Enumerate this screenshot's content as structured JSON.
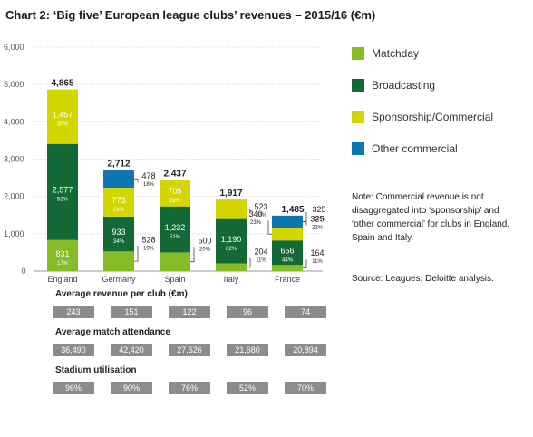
{
  "chart_data": {
    "type": "bar",
    "stacked": true,
    "title": "Chart 2: ‘Big five’ European league clubs’ revenues – 2015/16 (€m)",
    "categories": [
      "England",
      "Germany",
      "Spain",
      "Italy",
      "France"
    ],
    "ylim": [
      0,
      6000
    ],
    "yticks": [
      "0",
      "1,000",
      "2,000",
      "3,000",
      "4,000",
      "5,000",
      "6,000"
    ],
    "ytick_values": [
      0,
      1000,
      2000,
      3000,
      4000,
      5000,
      6000
    ],
    "grid": true,
    "legend_position": "right",
    "totals": [
      4865,
      2712,
      2437,
      1917,
      1485
    ],
    "total_labels": [
      "4,865",
      "2,712",
      "2,437",
      "1,917",
      "1,485"
    ],
    "series": [
      {
        "name": "Matchday",
        "color": "#86bc25",
        "values": [
          831,
          528,
          500,
          204,
          164
        ],
        "value_labels": [
          "831",
          "528",
          "500",
          "204",
          "164"
        ],
        "pct_labels": [
          "17%",
          "19%",
          "20%",
          "11%",
          "11%"
        ]
      },
      {
        "name": "Broadcasting",
        "color": "#136a36",
        "values": [
          2577,
          933,
          1232,
          1190,
          656
        ],
        "value_labels": [
          "2,577",
          "933",
          "1,232",
          "1,190",
          "656"
        ],
        "pct_labels": [
          "53%",
          "34%",
          "51%",
          "62%",
          "44%"
        ]
      },
      {
        "name": "Sponsorship/Commercial",
        "color": "#d4d600",
        "values": [
          1457,
          773,
          705,
          523,
          340
        ],
        "value_labels": [
          "1,457",
          "773",
          "705",
          "523",
          "340"
        ],
        "pct_labels": [
          "30%",
          "29%",
          "29%",
          "27%",
          "23%"
        ]
      },
      {
        "name": "Other commercial",
        "color": "#0f76b2",
        "values": [
          0,
          478,
          0,
          0,
          325
        ],
        "value_labels": [
          "",
          "478",
          "",
          "",
          "325"
        ],
        "pct_labels": [
          "",
          "18%",
          "",
          "",
          "22%"
        ]
      }
    ]
  },
  "legend": [
    {
      "label": "Matchday",
      "color": "#86bc25"
    },
    {
      "label": "Broadcasting",
      "color": "#136a36"
    },
    {
      "label": "Sponsorship/Commercial",
      "color": "#d4d600"
    },
    {
      "label": "Other commercial",
      "color": "#0f76b2"
    }
  ],
  "note": "Note: Commercial revenue is not disaggregated into ‘sponsorship’ and ‘other commercial’ for clubs in England, Spain and Italy.",
  "source": "Source: Leagues; Deloitte analysis.",
  "stats": [
    {
      "title": "Average revenue per club (€m)",
      "values": [
        "243",
        "151",
        "122",
        "96",
        "74"
      ]
    },
    {
      "title": "Average match attendance",
      "values": [
        "36,490",
        "42,420",
        "27,626",
        "21,680",
        "20,894"
      ]
    },
    {
      "title": "Stadium utilisation",
      "values": [
        "96%",
        "90%",
        "76%",
        "52%",
        "70%"
      ]
    }
  ]
}
